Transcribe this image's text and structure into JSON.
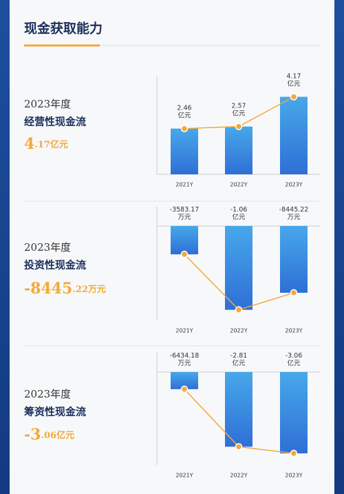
{
  "header": {
    "title": "现金获取能力"
  },
  "sections": [
    {
      "year": "2023年度",
      "name": "经营性现金流",
      "highlight": [
        "4",
        ".17",
        "亿元"
      ]
    },
    {
      "year": "2023年度",
      "name": "投资性现金流",
      "highlight": [
        "-8445",
        ".22",
        "万元"
      ]
    },
    {
      "year": "2023年度",
      "name": "筹资性现金流",
      "highlight": [
        "-3",
        ".06",
        "亿元"
      ]
    }
  ],
  "chart_data": [
    {
      "type": "bar",
      "categories": [
        "2021Y",
        "2022Y",
        "2023Y"
      ],
      "values": [
        2.46,
        2.57,
        4.17
      ],
      "value_labels": [
        "2.46亿元",
        "2.57亿元",
        "4.17亿元"
      ],
      "ylim": [
        0,
        5.3
      ],
      "color": "#3a8de2",
      "line_color": "#f2a93b"
    },
    {
      "type": "bar",
      "categories": [
        "2021Y",
        "2022Y",
        "2023Y"
      ],
      "values": [
        -0.358317,
        -1.06,
        -0.844522
      ],
      "value_labels": [
        "-3583.17万元",
        "-1.06亿元",
        "-8445.22万元"
      ],
      "ylim": [
        -1.15,
        0
      ],
      "color": "#3a8de2",
      "line_color": "#f2a93b"
    },
    {
      "type": "bar",
      "categories": [
        "2021Y",
        "2022Y",
        "2023Y"
      ],
      "values": [
        -0.643418,
        -2.81,
        -3.06
      ],
      "value_labels": [
        "-6434.18万元",
        "-2.81亿元",
        "-3.06亿元"
      ],
      "ylim": [
        -3.37,
        0
      ],
      "color": "#3a8de2",
      "line_color": "#f2a93b"
    }
  ]
}
